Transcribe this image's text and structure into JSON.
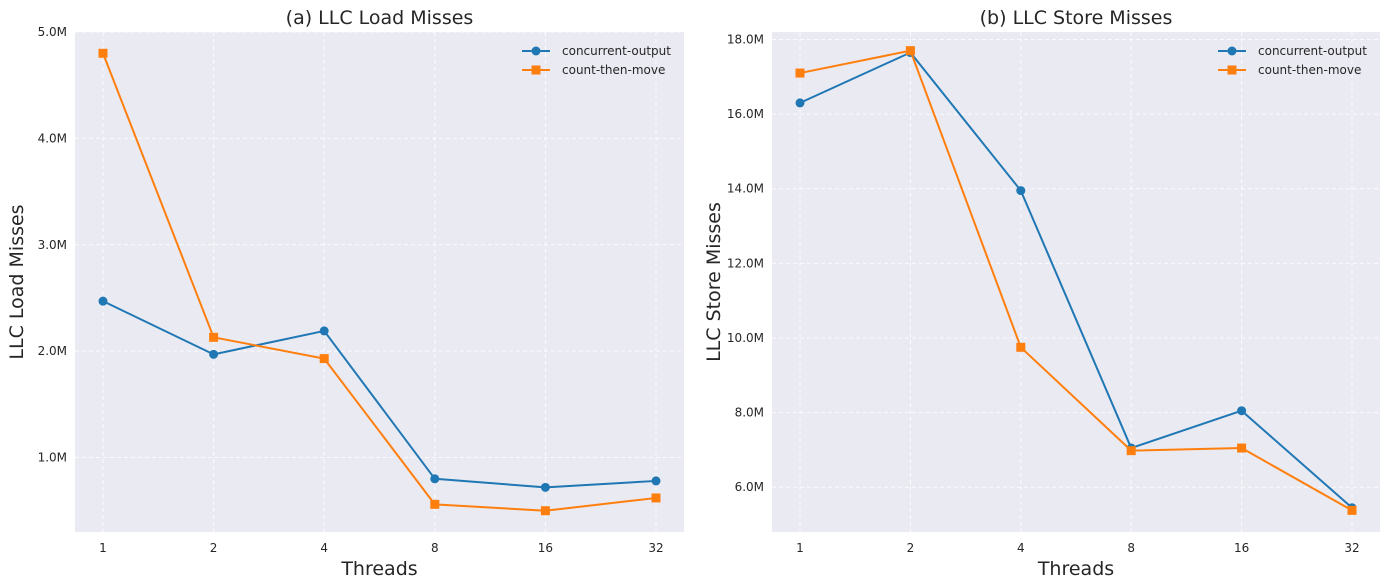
{
  "chart_data": [
    {
      "type": "line",
      "title": "(a) LLC Load Misses",
      "xlabel": "Threads",
      "ylabel": "LLC Load Misses",
      "categories": [
        "1",
        "2",
        "4",
        "8",
        "16",
        "32"
      ],
      "ylim": [
        0.3,
        5.0
      ],
      "yticks": [
        1.0,
        2.0,
        3.0,
        4.0,
        5.0
      ],
      "ytick_labels": [
        "1.0M",
        "2.0M",
        "3.0M",
        "4.0M",
        "5.0M"
      ],
      "grid": true,
      "legend_position": "top-right",
      "series": [
        {
          "name": "concurrent-output",
          "marker": "circle",
          "color": "#1f77b4",
          "values": [
            2.47,
            1.97,
            2.19,
            0.8,
            0.72,
            0.78
          ]
        },
        {
          "name": "count-then-move",
          "marker": "square",
          "color": "#ff7f0e",
          "values": [
            4.8,
            2.13,
            1.93,
            0.56,
            0.5,
            0.62
          ]
        }
      ]
    },
    {
      "type": "line",
      "title": "(b) LLC Store Misses",
      "xlabel": "Threads",
      "ylabel": "LLC Store Misses",
      "categories": [
        "1",
        "2",
        "4",
        "8",
        "16",
        "32"
      ],
      "ylim": [
        4.8,
        18.2
      ],
      "yticks": [
        6.0,
        8.0,
        10.0,
        12.0,
        14.0,
        16.0,
        18.0
      ],
      "ytick_labels": [
        "6.0M",
        "8.0M",
        "10.0M",
        "12.0M",
        "14.0M",
        "16.0M",
        "18.0M"
      ],
      "grid": true,
      "legend_position": "top-right",
      "series": [
        {
          "name": "concurrent-output",
          "marker": "circle",
          "color": "#1f77b4",
          "values": [
            16.3,
            17.65,
            13.95,
            7.05,
            8.05,
            5.45
          ]
        },
        {
          "name": "count-then-move",
          "marker": "square",
          "color": "#ff7f0e",
          "values": [
            17.1,
            17.7,
            9.75,
            6.98,
            7.05,
            5.38
          ]
        }
      ]
    }
  ]
}
